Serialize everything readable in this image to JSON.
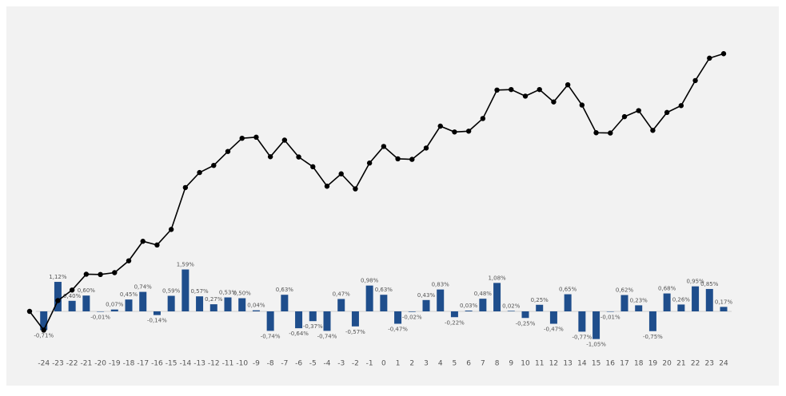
{
  "chart_data": {
    "type": "combo",
    "categories": [
      null,
      -24,
      -23,
      -22,
      -21,
      -20,
      -19,
      -18,
      -17,
      -16,
      -15,
      -14,
      -13,
      -12,
      -11,
      -10,
      -9,
      -8,
      -7,
      -6,
      -5,
      -4,
      -3,
      -2,
      -1,
      0,
      1,
      2,
      3,
      4,
      5,
      6,
      7,
      8,
      9,
      10,
      11,
      12,
      13,
      14,
      15,
      16,
      17,
      18,
      19,
      20,
      21,
      22,
      23,
      24
    ],
    "series": [
      {
        "type": "bar",
        "color": "#1f4e8c",
        "values": [
          null,
          -0.71,
          1.12,
          0.4,
          0.6,
          -0.01,
          0.07,
          0.45,
          0.74,
          -0.14,
          0.59,
          1.59,
          0.57,
          0.27,
          0.53,
          0.5,
          0.04,
          -0.74,
          0.63,
          -0.64,
          -0.37,
          -0.74,
          0.47,
          -0.57,
          0.98,
          0.63,
          -0.47,
          -0.02,
          0.43,
          0.83,
          -0.22,
          0.03,
          0.48,
          1.08,
          0.02,
          -0.25,
          0.25,
          -0.47,
          0.65,
          -0.77,
          -1.05,
          -0.01,
          0.62,
          0.23,
          -0.75,
          0.68,
          0.26,
          0.95,
          0.85,
          0.17
        ],
        "value_labels": [
          null,
          "-0,71%",
          "1,12%",
          "0,40%",
          "0,60%",
          "-0,01%",
          "0,07%",
          "0,45%",
          "0,74%",
          "-0,14%",
          "0,59%",
          "1,59%",
          "0,57%",
          "0,27%",
          "0,53%",
          "0,50%",
          "0,04%",
          "-0,74%",
          "0,63%",
          "-0,64%",
          "-0,37%",
          "-0,74%",
          "0,47%",
          "-0,57%",
          "0,98%",
          "0,63%",
          "-0,47%",
          "-0,02%",
          "0,43%",
          "0,83%",
          "-0,22%",
          "0,03%",
          "0,48%",
          "1,08%",
          "0,02%",
          "-0,25%",
          "0,25%",
          "-0,47%",
          "0,65%",
          "-0,77%",
          "-1,05%",
          "-0,01%",
          "0,62%",
          "0,23%",
          "-0,75%",
          "0,68%",
          "0,26%",
          "0,95%",
          "0,85%",
          "0,17%"
        ]
      },
      {
        "type": "line",
        "color": "#000000",
        "values": [
          0,
          -0.71,
          0.41,
          0.81,
          1.41,
          1.4,
          1.47,
          1.92,
          2.66,
          2.52,
          3.11,
          4.7,
          5.27,
          5.54,
          6.07,
          6.57,
          6.61,
          5.87,
          6.5,
          5.86,
          5.49,
          4.75,
          5.22,
          4.65,
          5.63,
          6.26,
          5.79,
          5.77,
          6.2,
          7.03,
          6.81,
          6.84,
          7.32,
          8.4,
          8.42,
          8.17,
          8.42,
          7.95,
          8.6,
          7.83,
          6.78,
          6.77,
          7.39,
          7.62,
          6.87,
          7.55,
          7.81,
          8.76,
          9.61,
          9.78
        ]
      }
    ]
  }
}
